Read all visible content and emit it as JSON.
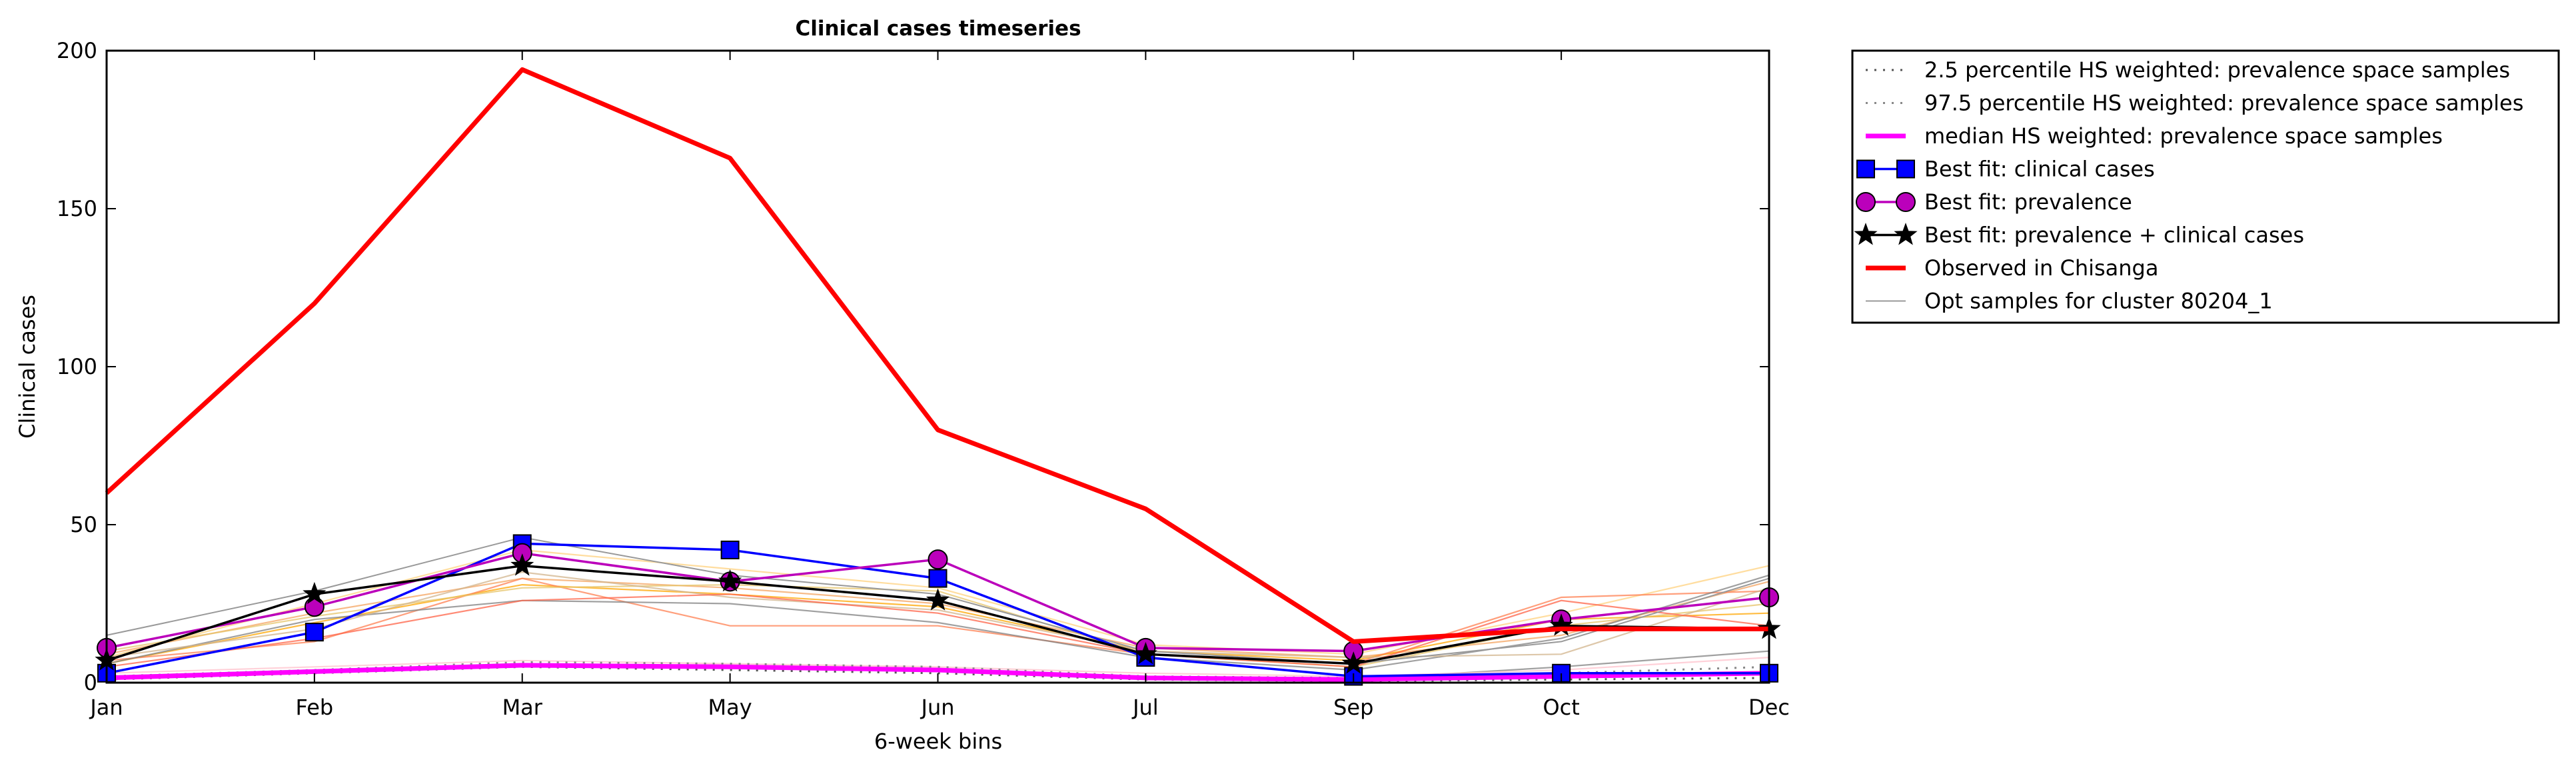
{
  "chart_data": {
    "type": "line",
    "title": "Clinical cases timeseries",
    "xlabel": "6-week bins",
    "ylabel": "Clinical cases",
    "categories": [
      "Jan",
      "Feb",
      "Mar",
      "May",
      "Jun",
      "Jul",
      "Sep",
      "Oct",
      "Dec"
    ],
    "ylim": [
      0,
      200
    ],
    "yticks": [
      0,
      50,
      100,
      150,
      200
    ],
    "grid": false,
    "legend_placement": "outside top-right",
    "series": [
      {
        "name": "2.5 percentile HS weighted: prevalence space samples",
        "color": "#555555",
        "style": "dotted",
        "marker": "none",
        "values": [
          1,
          3,
          5,
          4,
          3,
          1,
          0.5,
          1,
          1.5
        ]
      },
      {
        "name": "97.5 percentile HS weighted: prevalence space samples",
        "color": "#888888",
        "style": "dotted",
        "marker": "none",
        "values": [
          2,
          4,
          6.5,
          6,
          5,
          2,
          1.5,
          3,
          5
        ]
      },
      {
        "name": "median HS weighted: prevalence space samples",
        "color": "#ff00ff",
        "style": "solid-thick",
        "marker": "none",
        "values": [
          1.5,
          3.5,
          5.5,
          5,
          4,
          1.5,
          1,
          2,
          3
        ]
      },
      {
        "name": "Best fit: clinical cases",
        "color": "#0000ff",
        "style": "solid",
        "marker": "square",
        "values": [
          3,
          16,
          44,
          42,
          33,
          8,
          2,
          3,
          3
        ]
      },
      {
        "name": "Best fit: prevalence",
        "color": "#bb00bb",
        "style": "solid",
        "marker": "circle",
        "values": [
          11,
          24,
          41,
          32,
          39,
          11,
          10,
          20,
          27
        ]
      },
      {
        "name": "Best fit: prevalence + clinical cases",
        "color": "#000000",
        "style": "solid",
        "marker": "star",
        "values": [
          7,
          28,
          37,
          32,
          26,
          9,
          6,
          18,
          17
        ]
      },
      {
        "name": "Observed in Chisanga",
        "color": "#ff0000",
        "style": "solid-thick",
        "marker": "none",
        "values": [
          60,
          120,
          194,
          166,
          80,
          55,
          13,
          17,
          17
        ]
      },
      {
        "name": "Opt samples for cluster 80204_1",
        "color": "#999999",
        "style": "solid-thin",
        "marker": "none",
        "values": [
          15,
          29,
          46,
          34,
          28,
          10,
          6,
          13,
          33
        ]
      }
    ],
    "background_samples": [
      {
        "color": "#f4a460",
        "values": [
          9,
          22,
          33,
          30,
          25,
          11,
          8,
          15,
          32
        ]
      },
      {
        "color": "#ffa500",
        "values": [
          6,
          19,
          31,
          28,
          24,
          10,
          7,
          20,
          22
        ]
      },
      {
        "color": "#ffd27f",
        "values": [
          8,
          25,
          42,
          36,
          30,
          12,
          9,
          22,
          37
        ]
      },
      {
        "color": "#ff7f50",
        "values": [
          7,
          13,
          33,
          18,
          18,
          9,
          6,
          27,
          29
        ]
      },
      {
        "color": "#e6c46a",
        "values": [
          10,
          21,
          30,
          31,
          29,
          9,
          5,
          18,
          25
        ]
      },
      {
        "color": "#808080",
        "values": [
          6,
          20,
          26,
          25,
          19,
          8,
          4,
          14,
          34
        ]
      },
      {
        "color": "#d2b48c",
        "values": [
          8,
          17,
          35,
          27,
          23,
          10,
          8,
          9,
          30
        ]
      },
      {
        "color": "#ff6347",
        "values": [
          5,
          14,
          26,
          28,
          22,
          9,
          5,
          26,
          18
        ]
      },
      {
        "color": "#808080",
        "values": [
          2,
          4,
          6,
          5,
          4,
          2,
          1,
          5,
          10
        ]
      },
      {
        "color": "#ffc0cb",
        "values": [
          3,
          5,
          7,
          6,
          5,
          3,
          2,
          4,
          8
        ]
      }
    ]
  }
}
